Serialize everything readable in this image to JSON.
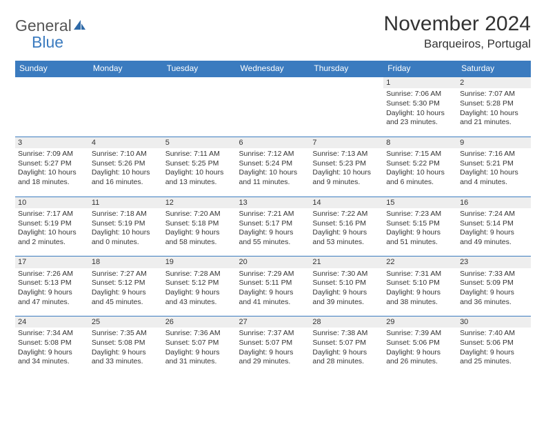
{
  "logo": {
    "text1": "General",
    "text2": "Blue",
    "sail_color": "#2f6aa8"
  },
  "title": "November 2024",
  "location": "Barqueiros, Portugal",
  "colors": {
    "header_bg": "#3b7bbf",
    "row_border": "#3b7bbf",
    "daynum_bg": "#eeeeee"
  },
  "weekdays": [
    "Sunday",
    "Monday",
    "Tuesday",
    "Wednesday",
    "Thursday",
    "Friday",
    "Saturday"
  ],
  "weeks": [
    [
      null,
      null,
      null,
      null,
      null,
      {
        "n": "1",
        "sunrise": "7:06 AM",
        "sunset": "5:30 PM",
        "daylight": "10 hours and 23 minutes."
      },
      {
        "n": "2",
        "sunrise": "7:07 AM",
        "sunset": "5:28 PM",
        "daylight": "10 hours and 21 minutes."
      }
    ],
    [
      {
        "n": "3",
        "sunrise": "7:09 AM",
        "sunset": "5:27 PM",
        "daylight": "10 hours and 18 minutes."
      },
      {
        "n": "4",
        "sunrise": "7:10 AM",
        "sunset": "5:26 PM",
        "daylight": "10 hours and 16 minutes."
      },
      {
        "n": "5",
        "sunrise": "7:11 AM",
        "sunset": "5:25 PM",
        "daylight": "10 hours and 13 minutes."
      },
      {
        "n": "6",
        "sunrise": "7:12 AM",
        "sunset": "5:24 PM",
        "daylight": "10 hours and 11 minutes."
      },
      {
        "n": "7",
        "sunrise": "7:13 AM",
        "sunset": "5:23 PM",
        "daylight": "10 hours and 9 minutes."
      },
      {
        "n": "8",
        "sunrise": "7:15 AM",
        "sunset": "5:22 PM",
        "daylight": "10 hours and 6 minutes."
      },
      {
        "n": "9",
        "sunrise": "7:16 AM",
        "sunset": "5:21 PM",
        "daylight": "10 hours and 4 minutes."
      }
    ],
    [
      {
        "n": "10",
        "sunrise": "7:17 AM",
        "sunset": "5:19 PM",
        "daylight": "10 hours and 2 minutes."
      },
      {
        "n": "11",
        "sunrise": "7:18 AM",
        "sunset": "5:19 PM",
        "daylight": "10 hours and 0 minutes."
      },
      {
        "n": "12",
        "sunrise": "7:20 AM",
        "sunset": "5:18 PM",
        "daylight": "9 hours and 58 minutes."
      },
      {
        "n": "13",
        "sunrise": "7:21 AM",
        "sunset": "5:17 PM",
        "daylight": "9 hours and 55 minutes."
      },
      {
        "n": "14",
        "sunrise": "7:22 AM",
        "sunset": "5:16 PM",
        "daylight": "9 hours and 53 minutes."
      },
      {
        "n": "15",
        "sunrise": "7:23 AM",
        "sunset": "5:15 PM",
        "daylight": "9 hours and 51 minutes."
      },
      {
        "n": "16",
        "sunrise": "7:24 AM",
        "sunset": "5:14 PM",
        "daylight": "9 hours and 49 minutes."
      }
    ],
    [
      {
        "n": "17",
        "sunrise": "7:26 AM",
        "sunset": "5:13 PM",
        "daylight": "9 hours and 47 minutes."
      },
      {
        "n": "18",
        "sunrise": "7:27 AM",
        "sunset": "5:12 PM",
        "daylight": "9 hours and 45 minutes."
      },
      {
        "n": "19",
        "sunrise": "7:28 AM",
        "sunset": "5:12 PM",
        "daylight": "9 hours and 43 minutes."
      },
      {
        "n": "20",
        "sunrise": "7:29 AM",
        "sunset": "5:11 PM",
        "daylight": "9 hours and 41 minutes."
      },
      {
        "n": "21",
        "sunrise": "7:30 AM",
        "sunset": "5:10 PM",
        "daylight": "9 hours and 39 minutes."
      },
      {
        "n": "22",
        "sunrise": "7:31 AM",
        "sunset": "5:10 PM",
        "daylight": "9 hours and 38 minutes."
      },
      {
        "n": "23",
        "sunrise": "7:33 AM",
        "sunset": "5:09 PM",
        "daylight": "9 hours and 36 minutes."
      }
    ],
    [
      {
        "n": "24",
        "sunrise": "7:34 AM",
        "sunset": "5:08 PM",
        "daylight": "9 hours and 34 minutes."
      },
      {
        "n": "25",
        "sunrise": "7:35 AM",
        "sunset": "5:08 PM",
        "daylight": "9 hours and 33 minutes."
      },
      {
        "n": "26",
        "sunrise": "7:36 AM",
        "sunset": "5:07 PM",
        "daylight": "9 hours and 31 minutes."
      },
      {
        "n": "27",
        "sunrise": "7:37 AM",
        "sunset": "5:07 PM",
        "daylight": "9 hours and 29 minutes."
      },
      {
        "n": "28",
        "sunrise": "7:38 AM",
        "sunset": "5:07 PM",
        "daylight": "9 hours and 28 minutes."
      },
      {
        "n": "29",
        "sunrise": "7:39 AM",
        "sunset": "5:06 PM",
        "daylight": "9 hours and 26 minutes."
      },
      {
        "n": "30",
        "sunrise": "7:40 AM",
        "sunset": "5:06 PM",
        "daylight": "9 hours and 25 minutes."
      }
    ]
  ],
  "labels": {
    "sunrise": "Sunrise:",
    "sunset": "Sunset:",
    "daylight": "Daylight:"
  }
}
